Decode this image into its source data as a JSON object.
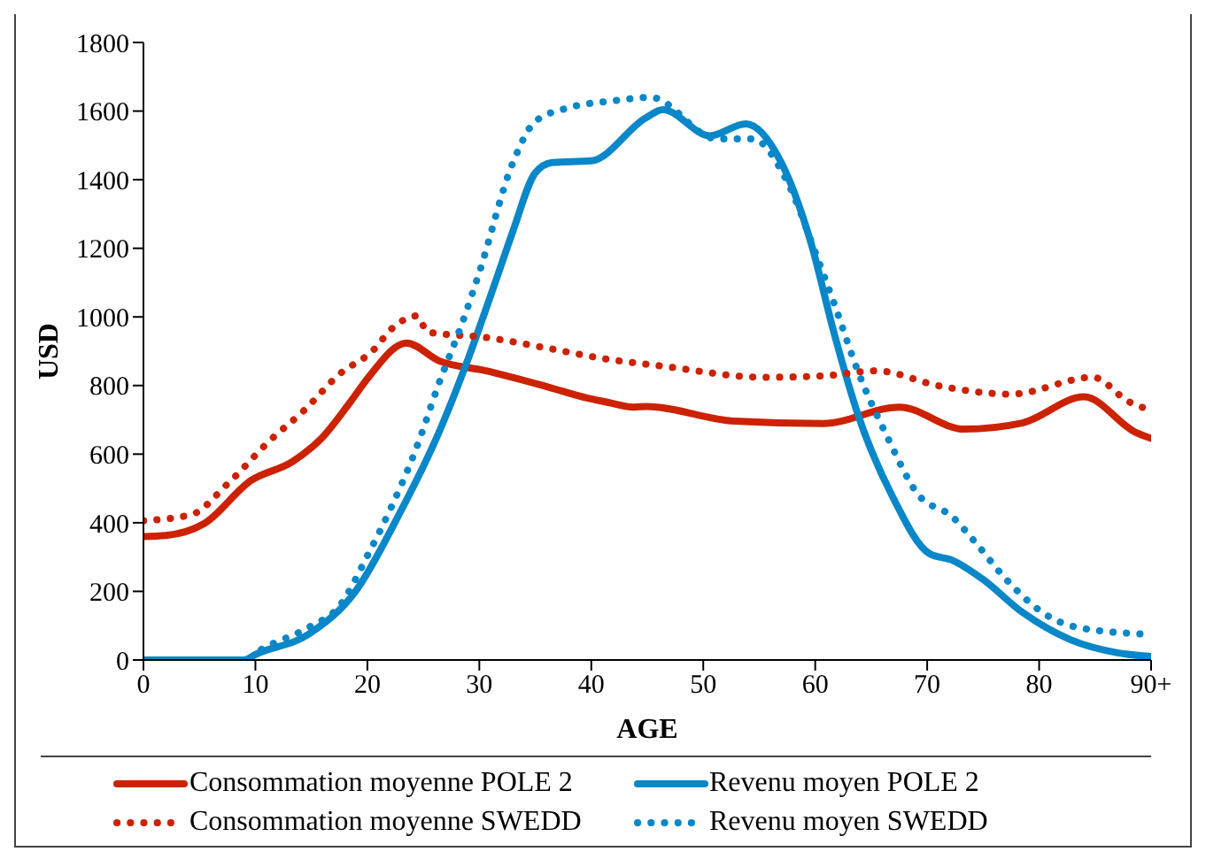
{
  "chart_data": {
    "type": "line",
    "xlabel": "AGE",
    "ylabel": "USD",
    "xlim": [
      0,
      90
    ],
    "xticks": [
      0,
      10,
      20,
      30,
      40,
      50,
      60,
      70,
      80,
      {
        "value": 90,
        "label": "90+"
      }
    ],
    "ylim": [
      0,
      1800
    ],
    "yticks": [
      0,
      200,
      400,
      600,
      800,
      1000,
      1200,
      1400,
      1600,
      1800
    ],
    "grid": false,
    "legend": "bottom",
    "marker": "none",
    "series": [
      {
        "name": "Consommation moyenne POLE 2",
        "color": "#cc2200",
        "line_style": "solid",
        "x": [
          0,
          2,
          5.4,
          9.6,
          13.3,
          15.9,
          18.5,
          20.1,
          23.5,
          26.4,
          30.6,
          35.9,
          39.7,
          41.2,
          43.8,
          44.9,
          52.8,
          60.7,
          67.5,
          73.3,
          78.5,
          84,
          88.6,
          90
        ],
        "values": [
          360,
          363,
          397,
          523,
          578,
          646,
          753,
          824,
          924,
          872,
          843,
          798,
          763,
          753,
          737,
          739,
          696,
          689,
          737,
          673,
          691,
          767,
          664,
          646
        ]
      },
      {
        "name": "Revenu moyen POLE 2",
        "color": "#0a87c8",
        "line_style": "solid",
        "x": [
          0,
          9,
          10,
          14.8,
          19,
          22.7,
          26.4,
          29,
          31.7,
          33,
          35,
          36.5,
          40,
          44.9,
          46.4,
          50.6,
          53.8,
          57,
          59.6,
          61.7,
          63.8,
          67,
          70.2,
          72.3,
          74.9,
          78.5,
          82.8,
          87,
          90
        ],
        "values": [
          0,
          0,
          16,
          76,
          203,
          416,
          664,
          878,
          1127,
          1250,
          1420,
          1450,
          1455,
          1581,
          1604,
          1528,
          1563,
          1448,
          1218,
          951,
          717,
          470,
          310,
          290,
          237,
          139,
          59,
          21,
          10
        ]
      },
      {
        "name": "Consommation moyenne SWEDD",
        "color": "#cc2200",
        "line_style": "dotted",
        "x": [
          0,
          4.3,
          7.5,
          11.4,
          14.3,
          17.5,
          20.4,
          22.4,
          24.4,
          25.4,
          30.6,
          35.9,
          41.2,
          46.5,
          55.4,
          60.7,
          65.4,
          71.2,
          77.5,
          84.8,
          88,
          89.6
        ],
        "values": [
          406,
          424,
          513,
          643,
          726,
          833,
          899,
          972,
          1003,
          956,
          940,
          910,
          878,
          856,
          824,
          828,
          843,
          798,
          775,
          824,
          753,
          732
        ]
      },
      {
        "name": "Revenu moyen SWEDD",
        "color": "#0a87c8",
        "line_style": "dotted",
        "x": [
          0,
          9,
          10.6,
          14.8,
          17.5,
          20.1,
          22.2,
          24.3,
          26.4,
          28.5,
          30,
          33,
          35,
          38,
          42,
          45.3,
          51.2,
          54.4,
          57.5,
          60.1,
          61.7,
          63.8,
          66.5,
          69.1,
          72.3,
          74.3,
          77,
          80.7,
          83.3,
          89.1
        ],
        "values": [
          0,
          0,
          32,
          96,
          157,
          310,
          450,
          611,
          807,
          985,
          1130,
          1450,
          1570,
          1610,
          1630,
          1640,
          1519,
          1519,
          1394,
          1180,
          1038,
          843,
          646,
          486,
          416,
          343,
          237,
          130,
          96,
          76
        ]
      }
    ]
  }
}
